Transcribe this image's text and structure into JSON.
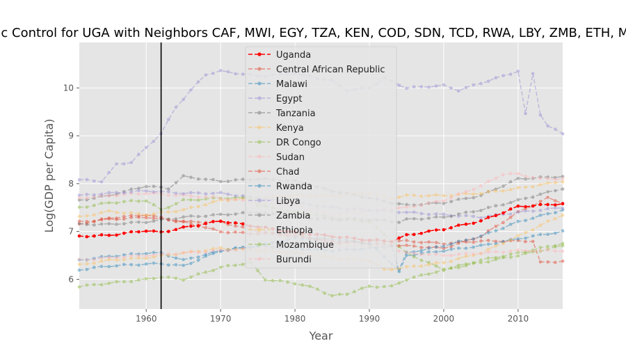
{
  "chart_data": {
    "type": "line",
    "title": "Synthetic Control for UGA with Neighbors CAF, MWI, EGY, TZA, KEN, COD, SDN, TCD, RWA, LBY, ZMB, ETH, MOZ, BDI",
    "xlabel": "Year",
    "ylabel": "Log(GDP per Capita)",
    "xlim": [
      1951,
      2016
    ],
    "ylim": [
      5.38,
      10.95
    ],
    "xticks": [
      1960,
      1970,
      1980,
      1990,
      2000,
      2010
    ],
    "yticks": [
      6,
      7,
      8,
      9,
      10
    ],
    "grid": true,
    "legend_position": "top-center",
    "treatment_year": 1962,
    "series": [
      {
        "name": "Uganda",
        "color": "#ff0000",
        "alpha": 1.0,
        "highlight": true,
        "keys": [
          [
            1951,
            6.9
          ],
          [
            1955,
            6.92
          ],
          [
            1960,
            7.02
          ],
          [
            1962,
            6.98
          ],
          [
            1965,
            7.08
          ],
          [
            1970,
            7.22
          ],
          [
            1975,
            7.1
          ],
          [
            1980,
            6.98
          ],
          [
            1985,
            6.9
          ],
          [
            1990,
            6.82
          ],
          [
            1993,
            6.8
          ],
          [
            1995,
            6.92
          ],
          [
            2000,
            7.05
          ],
          [
            2005,
            7.22
          ],
          [
            2010,
            7.52
          ],
          [
            2016,
            7.58
          ]
        ]
      },
      {
        "name": "Central African Republic",
        "color": "#e24a33",
        "alpha": 0.5,
        "keys": [
          [
            1951,
            7.15
          ],
          [
            1955,
            7.28
          ],
          [
            1960,
            7.35
          ],
          [
            1965,
            7.2
          ],
          [
            1970,
            7.0
          ],
          [
            1975,
            6.95
          ],
          [
            1980,
            6.95
          ],
          [
            1985,
            6.75
          ],
          [
            1990,
            6.8
          ],
          [
            1995,
            6.8
          ],
          [
            2000,
            6.75
          ],
          [
            2005,
            6.8
          ],
          [
            2010,
            6.8
          ],
          [
            2012,
            6.8
          ],
          [
            2013,
            6.35
          ],
          [
            2016,
            6.38
          ]
        ]
      },
      {
        "name": "Malawi",
        "color": "#348abd",
        "alpha": 0.5,
        "keys": [
          [
            1951,
            6.2
          ],
          [
            1955,
            6.28
          ],
          [
            1960,
            6.32
          ],
          [
            1962,
            6.33
          ],
          [
            1965,
            6.28
          ],
          [
            1970,
            6.6
          ],
          [
            1975,
            6.7
          ],
          [
            1980,
            6.65
          ],
          [
            1985,
            6.6
          ],
          [
            1990,
            6.65
          ],
          [
            1993,
            6.7
          ],
          [
            1994,
            6.15
          ],
          [
            1995,
            6.5
          ],
          [
            2000,
            6.6
          ],
          [
            2005,
            6.7
          ],
          [
            2010,
            6.85
          ],
          [
            2016,
            7.0
          ]
        ]
      },
      {
        "name": "Egypt",
        "color": "#988ed5",
        "alpha": 0.5,
        "keys": [
          [
            1951,
            8.08
          ],
          [
            1954,
            8.05
          ],
          [
            1956,
            8.4
          ],
          [
            1958,
            8.45
          ],
          [
            1960,
            8.75
          ],
          [
            1962,
            9.05
          ],
          [
            1964,
            9.6
          ],
          [
            1966,
            9.95
          ],
          [
            1968,
            10.28
          ],
          [
            1970,
            10.35
          ],
          [
            1975,
            10.25
          ],
          [
            1980,
            10.3
          ],
          [
            1985,
            10.15
          ],
          [
            1987,
            9.95
          ],
          [
            1990,
            10.0
          ],
          [
            1992,
            10.2
          ],
          [
            1995,
            10.0
          ],
          [
            2000,
            10.05
          ],
          [
            2002,
            9.95
          ],
          [
            2005,
            10.1
          ],
          [
            2010,
            10.35
          ],
          [
            2011,
            9.45
          ],
          [
            2012,
            10.3
          ],
          [
            2013,
            9.45
          ],
          [
            2014,
            9.2
          ],
          [
            2016,
            9.05
          ]
        ]
      },
      {
        "name": "Tanzania",
        "color": "#777777",
        "alpha": 0.5,
        "keys": [
          [
            1951,
            7.65
          ],
          [
            1955,
            7.75
          ],
          [
            1960,
            7.95
          ],
          [
            1963,
            7.9
          ],
          [
            1965,
            8.15
          ],
          [
            1970,
            8.05
          ],
          [
            1975,
            8.1
          ],
          [
            1980,
            8.05
          ],
          [
            1985,
            7.85
          ],
          [
            1990,
            7.7
          ],
          [
            1993,
            7.6
          ],
          [
            1995,
            7.55
          ],
          [
            2000,
            7.6
          ],
          [
            2005,
            7.75
          ],
          [
            2010,
            8.1
          ],
          [
            2016,
            8.15
          ]
        ]
      },
      {
        "name": "Kenya",
        "color": "#fbc15e",
        "alpha": 0.5,
        "keys": [
          [
            1951,
            7.3
          ],
          [
            1955,
            7.42
          ],
          [
            1960,
            7.35
          ],
          [
            1965,
            7.45
          ],
          [
            1970,
            7.65
          ],
          [
            1975,
            7.7
          ],
          [
            1980,
            7.75
          ],
          [
            1985,
            7.75
          ],
          [
            1990,
            7.8
          ],
          [
            1993,
            7.7
          ],
          [
            1995,
            7.75
          ],
          [
            2000,
            7.75
          ],
          [
            2005,
            7.8
          ],
          [
            2010,
            7.9
          ],
          [
            2016,
            8.05
          ]
        ]
      },
      {
        "name": "DR Congo",
        "color": "#8eba42",
        "alpha": 0.5,
        "keys": [
          [
            1951,
            7.5
          ],
          [
            1955,
            7.6
          ],
          [
            1960,
            7.65
          ],
          [
            1962,
            7.45
          ],
          [
            1965,
            7.65
          ],
          [
            1970,
            7.7
          ],
          [
            1974,
            7.7
          ],
          [
            1975,
            7.55
          ],
          [
            1980,
            7.4
          ],
          [
            1985,
            7.3
          ],
          [
            1990,
            7.2
          ],
          [
            1995,
            6.55
          ],
          [
            2000,
            6.2
          ],
          [
            2005,
            6.4
          ],
          [
            2010,
            6.55
          ],
          [
            2016,
            6.75
          ]
        ]
      },
      {
        "name": "Sudan",
        "color": "#ffb5b8",
        "alpha": 0.5,
        "keys": [
          [
            1951,
            7.7
          ],
          [
            1955,
            7.75
          ],
          [
            1960,
            7.8
          ],
          [
            1965,
            7.75
          ],
          [
            1970,
            7.7
          ],
          [
            1975,
            7.6
          ],
          [
            1980,
            7.55
          ],
          [
            1985,
            7.35
          ],
          [
            1990,
            7.45
          ],
          [
            1995,
            7.5
          ],
          [
            2000,
            7.65
          ],
          [
            2005,
            7.95
          ],
          [
            2008,
            8.2
          ],
          [
            2010,
            8.2
          ],
          [
            2013,
            8.1
          ],
          [
            2016,
            8.1
          ]
        ]
      },
      {
        "name": "Chad",
        "color": "#e24a33",
        "alpha": 0.5,
        "keys": [
          [
            1951,
            7.2
          ],
          [
            1955,
            7.25
          ],
          [
            1960,
            7.3
          ],
          [
            1965,
            7.2
          ],
          [
            1970,
            7.2
          ],
          [
            1975,
            7.0
          ],
          [
            1980,
            6.9
          ],
          [
            1985,
            6.8
          ],
          [
            1990,
            6.75
          ],
          [
            1995,
            6.7
          ],
          [
            2000,
            6.65
          ],
          [
            2005,
            6.9
          ],
          [
            2010,
            7.4
          ],
          [
            2014,
            7.7
          ],
          [
            2016,
            7.6
          ]
        ]
      },
      {
        "name": "Rwanda",
        "color": "#348abd",
        "alpha": 0.5,
        "keys": [
          [
            1951,
            6.4
          ],
          [
            1955,
            6.48
          ],
          [
            1960,
            6.55
          ],
          [
            1962,
            6.55
          ],
          [
            1965,
            6.4
          ],
          [
            1970,
            6.6
          ],
          [
            1975,
            6.7
          ],
          [
            1980,
            6.85
          ],
          [
            1985,
            6.85
          ],
          [
            1990,
            6.75
          ],
          [
            1994,
            6.2
          ],
          [
            1995,
            6.55
          ],
          [
            2000,
            6.7
          ],
          [
            2005,
            6.9
          ],
          [
            2010,
            7.2
          ],
          [
            2016,
            7.45
          ]
        ]
      },
      {
        "name": "Libya",
        "color": "#988ed5",
        "alpha": 0.5,
        "keys": [
          [
            1951,
            7.75
          ],
          [
            1955,
            7.8
          ],
          [
            1960,
            7.85
          ],
          [
            1965,
            7.8
          ],
          [
            1970,
            7.8
          ],
          [
            1975,
            7.7
          ],
          [
            1980,
            7.6
          ],
          [
            1985,
            7.5
          ],
          [
            1990,
            7.45
          ],
          [
            1995,
            7.4
          ],
          [
            2000,
            7.35
          ],
          [
            2005,
            7.3
          ],
          [
            2010,
            7.4
          ],
          [
            2016,
            7.5
          ]
        ]
      },
      {
        "name": "Zambia",
        "color": "#777777",
        "alpha": 0.5,
        "keys": [
          [
            1951,
            7.15
          ],
          [
            1955,
            7.15
          ],
          [
            1960,
            7.2
          ],
          [
            1965,
            7.3
          ],
          [
            1970,
            7.35
          ],
          [
            1975,
            7.4
          ],
          [
            1980,
            7.3
          ],
          [
            1985,
            7.25
          ],
          [
            1990,
            7.25
          ],
          [
            1994,
            7.2
          ],
          [
            1995,
            7.25
          ],
          [
            2000,
            7.3
          ],
          [
            2005,
            7.45
          ],
          [
            2010,
            7.65
          ],
          [
            2016,
            7.9
          ]
        ]
      },
      {
        "name": "Ethiopia",
        "color": "#fbc15e",
        "alpha": 0.5,
        "keys": [
          [
            1951,
            6.3
          ],
          [
            1955,
            6.4
          ],
          [
            1960,
            6.45
          ],
          [
            1965,
            6.55
          ],
          [
            1970,
            6.65
          ],
          [
            1975,
            6.6
          ],
          [
            1980,
            6.55
          ],
          [
            1985,
            6.45
          ],
          [
            1990,
            6.4
          ],
          [
            1992,
            6.2
          ],
          [
            1995,
            6.25
          ],
          [
            2000,
            6.35
          ],
          [
            2005,
            6.55
          ],
          [
            2010,
            6.9
          ],
          [
            2016,
            7.35
          ]
        ]
      },
      {
        "name": "Mozambique",
        "color": "#8eba42",
        "alpha": 0.5,
        "keys": [
          [
            1951,
            5.85
          ],
          [
            1955,
            5.92
          ],
          [
            1960,
            6.0
          ],
          [
            1962,
            6.05
          ],
          [
            1965,
            6.0
          ],
          [
            1970,
            6.25
          ],
          [
            1974,
            6.35
          ],
          [
            1976,
            6.0
          ],
          [
            1980,
            5.92
          ],
          [
            1983,
            5.8
          ],
          [
            1985,
            5.65
          ],
          [
            1987,
            5.7
          ],
          [
            1990,
            5.85
          ],
          [
            1993,
            5.85
          ],
          [
            1995,
            6.0
          ],
          [
            2000,
            6.2
          ],
          [
            2005,
            6.35
          ],
          [
            2010,
            6.5
          ],
          [
            2016,
            6.7
          ]
        ]
      },
      {
        "name": "Burundi",
        "color": "#ffb5b8",
        "alpha": 0.5,
        "keys": [
          [
            1951,
            6.4
          ],
          [
            1955,
            6.45
          ],
          [
            1960,
            6.5
          ],
          [
            1965,
            6.55
          ],
          [
            1970,
            6.6
          ],
          [
            1975,
            6.65
          ],
          [
            1980,
            6.7
          ],
          [
            1985,
            6.7
          ],
          [
            1990,
            6.7
          ],
          [
            1993,
            6.65
          ],
          [
            1995,
            6.55
          ],
          [
            2000,
            6.5
          ],
          [
            2005,
            6.55
          ],
          [
            2010,
            6.6
          ],
          [
            2016,
            6.6
          ]
        ]
      }
    ]
  }
}
